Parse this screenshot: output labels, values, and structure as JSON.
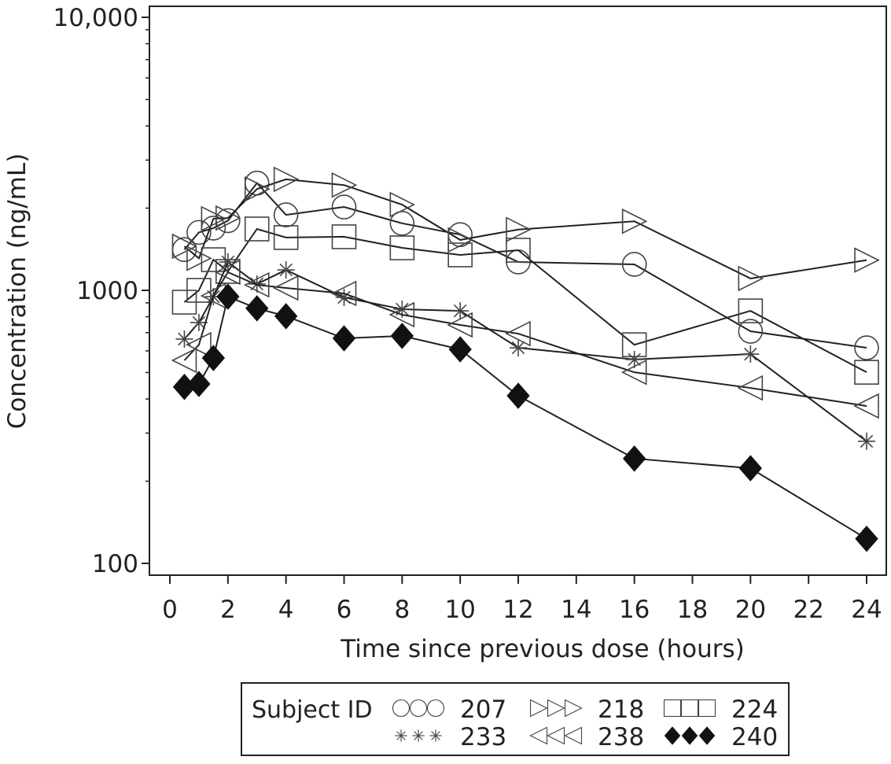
{
  "chart_data": {
    "type": "line",
    "xlabel": "Time since previous dose (hours)",
    "ylabel": "Concentration (ng/mL)",
    "yscale": "log",
    "ylim": [
      100,
      10000
    ],
    "xlim": [
      -1,
      25
    ],
    "xticks": [
      0,
      2,
      4,
      6,
      8,
      10,
      12,
      14,
      16,
      18,
      20,
      22,
      24
    ],
    "yticks": [
      {
        "v": 100,
        "label": "100"
      },
      {
        "v": 1000,
        "label": "1000"
      },
      {
        "v": 10000,
        "label": "10,000"
      }
    ],
    "legend_title": "Subject ID",
    "legend_position": "bottom",
    "x": [
      0.5,
      1,
      1.5,
      2,
      3,
      4,
      6,
      8,
      10,
      12,
      16,
      20,
      24
    ],
    "series": [
      {
        "name": "207",
        "marker": "circle",
        "values": [
          1410,
          1630,
          1690,
          1800,
          2470,
          1890,
          2020,
          1760,
          1600,
          1270,
          1245,
          708,
          616
        ]
      },
      {
        "name": "218",
        "marker": "triangle-right",
        "values": [
          1450,
          1310,
          1830,
          1840,
          2350,
          2550,
          2430,
          2060,
          1530,
          1670,
          1790,
          1105,
          1290
        ]
      },
      {
        "name": "224",
        "marker": "square",
        "values": [
          905,
          1000,
          1295,
          1173,
          1678,
          1561,
          1571,
          1431,
          1348,
          1403,
          632,
          841,
          501
        ]
      },
      {
        "name": "233",
        "marker": "asterisk",
        "values": [
          663,
          762,
          948,
          1270,
          1055,
          1188,
          942,
          853,
          841,
          616,
          558,
          584,
          280
        ]
      },
      {
        "name": "238",
        "marker": "triangle-left",
        "values": [
          554,
          632,
          955,
          1165,
          1047,
          1020,
          974,
          814,
          747,
          694,
          501,
          439,
          377
        ]
      },
      {
        "name": "240",
        "marker": "diamond-filled",
        "values": [
          443,
          454,
          565,
          948,
          859,
          804,
          667,
          681,
          608,
          411,
          242,
          223,
          123
        ]
      }
    ]
  }
}
